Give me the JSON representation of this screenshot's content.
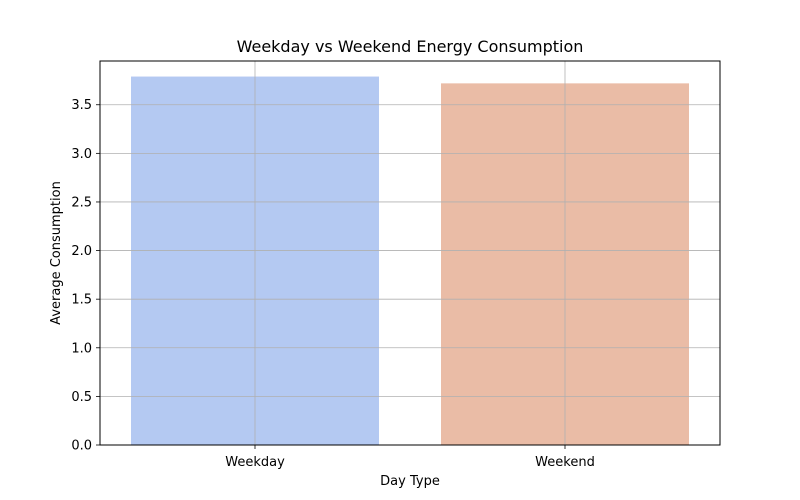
{
  "chart_data": {
    "type": "bar",
    "title": "Weekday vs Weekend Energy Consumption",
    "xlabel": "Day Type",
    "ylabel": "Average Consumption",
    "categories": [
      "Weekday",
      "Weekend"
    ],
    "values": [
      3.79,
      3.72
    ],
    "colors": [
      "#b4c9f2",
      "#eabca6"
    ],
    "ylim": [
      0,
      3.95
    ],
    "yticks": [
      0.0,
      0.5,
      1.0,
      1.5,
      2.0,
      2.5,
      3.0,
      3.5
    ],
    "ytick_labels": [
      "0.0",
      "0.5",
      "1.0",
      "1.5",
      "2.0",
      "2.5",
      "3.0",
      "3.5"
    ],
    "grid": true,
    "legend": "none"
  }
}
